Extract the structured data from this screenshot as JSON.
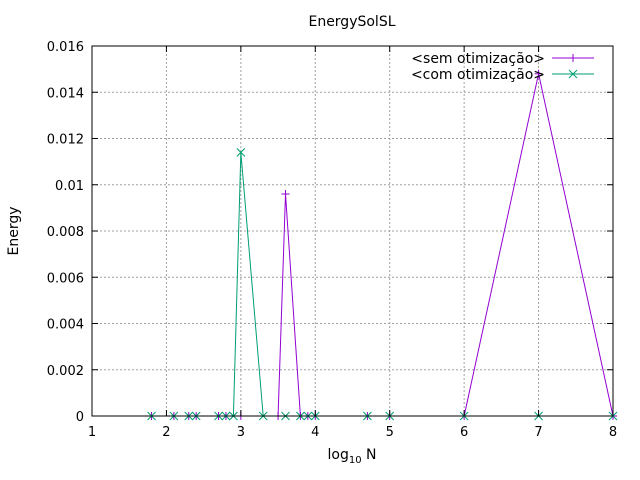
{
  "chart_data": {
    "type": "line",
    "title": "EnergySolSL",
    "xlabel": "log",
    "xlabel_sub": "10",
    "xlabel_suffix": " N",
    "ylabel": "Energy",
    "xlim": [
      1,
      8
    ],
    "ylim": [
      0,
      0.016
    ],
    "x_ticks": [
      "1",
      "2",
      "3",
      "4",
      "5",
      "6",
      "7",
      "8"
    ],
    "y_ticks": [
      "0",
      "0.002",
      "0.004",
      "0.006",
      "0.008",
      "0.01",
      "0.012",
      "0.014",
      "0.016"
    ],
    "grid": true,
    "legend_position": "top-right",
    "series": [
      {
        "name": "<sem otimização>",
        "color": "#9400d3",
        "marker": "plus",
        "x": [
          1.8,
          2.1,
          2.3,
          2.4,
          2.7,
          2.8,
          3.0,
          3.5,
          3.6,
          3.8,
          3.9,
          4.0,
          4.7,
          5.0,
          6.0,
          7.0,
          8.0
        ],
        "y": [
          0,
          0,
          0,
          0,
          0,
          0,
          0,
          0,
          0.0096,
          0,
          0,
          0,
          0,
          0,
          0,
          0.0148,
          0
        ]
      },
      {
        "name": "<com otimização>",
        "color": "#009e73",
        "marker": "cross",
        "x": [
          1.8,
          2.1,
          2.3,
          2.4,
          2.7,
          2.8,
          2.9,
          3.0,
          3.3,
          3.6,
          3.8,
          3.9,
          4.0,
          4.7,
          5.0,
          6.0,
          7.0,
          8.0
        ],
        "y": [
          0,
          0,
          0,
          0,
          0,
          0,
          0,
          0.0114,
          0,
          0,
          0,
          0,
          0,
          0,
          0,
          0,
          0,
          0
        ]
      }
    ]
  }
}
